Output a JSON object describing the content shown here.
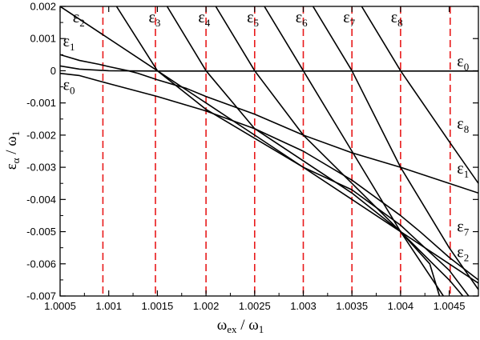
{
  "chart_data": {
    "type": "line",
    "title": "",
    "xlabel": {
      "base": "ω",
      "sub": "ex",
      "rest": " / ω",
      "sub2": "1"
    },
    "ylabel": {
      "base": "ε",
      "sub": "α",
      "rest": " / ω",
      "sub2": "1"
    },
    "xlim": [
      1.0005,
      1.0048
    ],
    "ylim": [
      -0.007,
      0.002
    ],
    "xticks": [
      {
        "value": 1.0005,
        "label": "1.0005"
      },
      {
        "value": 1.001,
        "label": "1.001"
      },
      {
        "value": 1.0015,
        "label": "1.0015"
      },
      {
        "value": 1.002,
        "label": "1.002"
      },
      {
        "value": 1.0025,
        "label": "1.0025"
      },
      {
        "value": 1.003,
        "label": "1.003"
      },
      {
        "value": 1.0035,
        "label": "1.0035"
      },
      {
        "value": 1.004,
        "label": "1.004"
      },
      {
        "value": 1.0045,
        "label": "1.0045"
      }
    ],
    "yticks": [
      {
        "value": 0.002,
        "label": "0.002"
      },
      {
        "value": 0.001,
        "label": "0.001"
      },
      {
        "value": 0,
        "label": "0"
      },
      {
        "value": -0.001,
        "label": "-0.001"
      },
      {
        "value": -0.002,
        "label": "-0.002"
      },
      {
        "value": -0.003,
        "label": "-0.003"
      },
      {
        "value": -0.004,
        "label": "-0.004"
      },
      {
        "value": -0.005,
        "label": "-0.005"
      },
      {
        "value": -0.006,
        "label": "-0.006"
      },
      {
        "value": -0.007,
        "label": "-0.007"
      }
    ],
    "vlines": {
      "color": "#e8191a",
      "style": "dashed",
      "x": [
        1.00094,
        1.00148,
        1.002,
        1.0025,
        1.003,
        1.0035,
        1.004,
        1.00451
      ]
    },
    "line_color": "#000000",
    "series": [
      {
        "label": "ε_0 (upper, flat branch)",
        "points": [
          [
            1.0005,
            0.00015
          ],
          [
            1.0007,
            5e-05
          ],
          [
            1.001,
            0.0
          ],
          [
            1.0015,
            -1e-05
          ],
          [
            1.002,
            -1e-05
          ],
          [
            1.003,
            -1e-05
          ],
          [
            1.004,
            -1e-05
          ],
          [
            1.0048,
            -1e-05
          ]
        ]
      },
      {
        "label": "ε_1 (upper)",
        "points": [
          [
            1.0005,
            0.0005
          ],
          [
            1.0007,
            0.00032
          ],
          [
            1.0009,
            0.0002
          ],
          [
            1.001,
            0.00013
          ],
          [
            1.0012,
            0.0
          ],
          [
            1.0013,
            -8e-05
          ],
          [
            1.0015,
            -0.00028
          ],
          [
            1.0018,
            -0.00055
          ],
          [
            1.002,
            -0.0008
          ],
          [
            1.0025,
            -0.00135
          ],
          [
            1.003,
            -0.002
          ],
          [
            1.0035,
            -0.00255
          ],
          [
            1.004,
            -0.003
          ],
          [
            1.0045,
            -0.0035
          ],
          [
            1.0048,
            -0.0038
          ]
        ]
      },
      {
        "label": "ε_0 (lower)",
        "points": [
          [
            1.0005,
            -8e-05
          ],
          [
            1.0007,
            -0.00015
          ],
          [
            1.001,
            -0.0004
          ],
          [
            1.0015,
            -0.0008
          ],
          [
            1.002,
            -0.00125
          ],
          [
            1.0025,
            -0.0018
          ],
          [
            1.003,
            -0.0025
          ],
          [
            1.0035,
            -0.0034
          ],
          [
            1.004,
            -0.0045
          ],
          [
            1.0042,
            -0.005
          ],
          [
            1.0045,
            -0.0058
          ],
          [
            1.0048,
            -0.0065
          ]
        ]
      },
      {
        "label": "ε_2",
        "points": [
          [
            1.0005,
            0.002
          ],
          [
            1.0015,
            0.0
          ],
          [
            1.0025,
            -0.002
          ],
          [
            1.003,
            -0.003
          ],
          [
            1.0035,
            -0.004
          ],
          [
            1.004,
            -0.005
          ],
          [
            1.0045,
            -0.006
          ],
          [
            1.0048,
            -0.0066
          ]
        ]
      },
      {
        "label": "ε_3",
        "points": [
          [
            1.00108,
            0.002
          ],
          [
            1.0015,
            0.0
          ],
          [
            1.002,
            -0.0012
          ],
          [
            1.003,
            -0.003
          ],
          [
            1.0035,
            -0.0037
          ],
          [
            1.004,
            -0.0048
          ],
          [
            1.0045,
            -0.0062
          ],
          [
            1.0047,
            -0.007
          ]
        ]
      },
      {
        "label": "ε_4",
        "points": [
          [
            1.0016,
            0.002
          ],
          [
            1.002,
            0.0
          ],
          [
            1.0025,
            -0.0018
          ],
          [
            1.0035,
            -0.0038
          ],
          [
            1.004,
            -0.005
          ],
          [
            1.0043,
            -0.006
          ],
          [
            1.0044,
            -0.007
          ]
        ]
      },
      {
        "label": "ε_5",
        "points": [
          [
            1.0021,
            0.002
          ],
          [
            1.0025,
            0.0
          ],
          [
            1.003,
            -0.002
          ],
          [
            1.0035,
            -0.0035
          ],
          [
            1.004,
            -0.005
          ],
          [
            1.0045,
            -0.0065
          ],
          [
            1.00464,
            -0.007
          ]
        ]
      },
      {
        "label": "ε_6",
        "points": [
          [
            1.0026,
            0.002
          ],
          [
            1.003,
            0.0
          ],
          [
            1.0035,
            -0.0025
          ],
          [
            1.004,
            -0.005
          ],
          [
            1.00444,
            -0.007
          ]
        ]
      },
      {
        "label": "ε_7",
        "points": [
          [
            1.0031,
            0.002
          ],
          [
            1.0035,
            0.0
          ],
          [
            1.004,
            -0.003
          ],
          [
            1.0045,
            -0.0055
          ],
          [
            1.0048,
            -0.0068
          ]
        ]
      },
      {
        "label": "ε_8",
        "points": [
          [
            1.0036,
            0.002
          ],
          [
            1.004,
            0.0
          ],
          [
            1.0045,
            -0.0022
          ],
          [
            1.0048,
            -0.0035
          ]
        ]
      }
    ],
    "annotations": [
      {
        "base": "ε",
        "sub": "2",
        "x": 1.00063,
        "y": 0.0015
      },
      {
        "base": "ε",
        "sub": "3",
        "x": 1.00141,
        "y": 0.0015
      },
      {
        "base": "ε",
        "sub": "4",
        "x": 1.00192,
        "y": 0.0015
      },
      {
        "base": "ε",
        "sub": "5",
        "x": 1.00242,
        "y": 0.0015
      },
      {
        "base": "ε",
        "sub": "6",
        "x": 1.00292,
        "y": 0.0015
      },
      {
        "base": "ε",
        "sub": "7",
        "x": 1.00341,
        "y": 0.0015
      },
      {
        "base": "ε",
        "sub": "8",
        "x": 1.0039,
        "y": 0.0015
      },
      {
        "base": "ε",
        "sub": "1",
        "x": 1.00053,
        "y": 0.00076
      },
      {
        "base": "ε",
        "sub": "0",
        "x": 1.00053,
        "y": -0.0006
      },
      {
        "base": "ε",
        "sub": "0",
        "x": 1.00458,
        "y": 0.00014
      },
      {
        "base": "ε",
        "sub": "8",
        "x": 1.00458,
        "y": -0.0018
      },
      {
        "base": "ε",
        "sub": "1",
        "x": 1.00458,
        "y": -0.0032
      },
      {
        "base": "ε",
        "sub": "7",
        "x": 1.00458,
        "y": -0.005
      },
      {
        "base": "ε",
        "sub": "2",
        "x": 1.00458,
        "y": -0.0058
      }
    ]
  }
}
